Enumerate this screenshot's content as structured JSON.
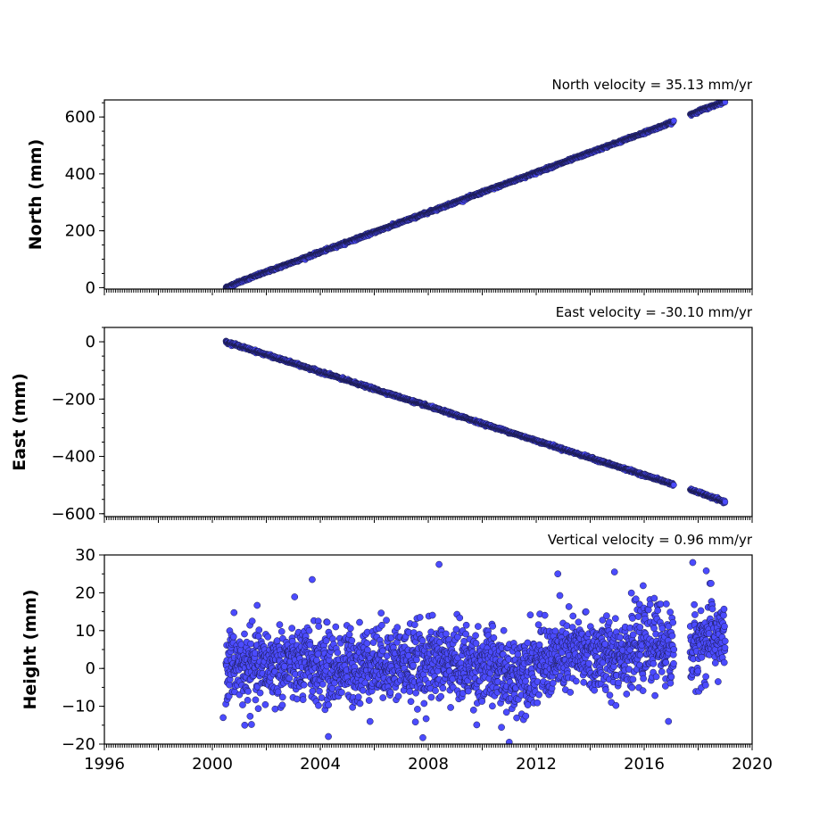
{
  "chart_data": [
    {
      "type": "scatter",
      "panel": "north",
      "ylabel": "North (mm)",
      "annotation": "North velocity = 35.13 mm/yr",
      "xlim": [
        1996,
        2020
      ],
      "ylim": [
        -5,
        660
      ],
      "yticks": [
        0,
        200,
        400,
        600
      ],
      "ytick_labels": [
        "0",
        "200",
        "400",
        "600"
      ],
      "xtick_labels_shown": false,
      "grid": false,
      "marker_color": "#4b4bff",
      "edge_color": "#1a1a4a",
      "series": [
        {
          "x": [
            2000.5,
            2001.0,
            2001.5,
            2002.0,
            2003.0,
            2004.0,
            2005.0,
            2006.0,
            2007.0,
            2008.0,
            2009.0,
            2010.0,
            2011.0,
            2012.0,
            2013.0,
            2014.0,
            2015.0,
            2016.0,
            2017.0,
            2018.0,
            2019.0
          ],
          "y": [
            0,
            20,
            38,
            55,
            90,
            125,
            160,
            195,
            230,
            265,
            300,
            335,
            370,
            405,
            440,
            475,
            510,
            545,
            580,
            620,
            655
          ]
        }
      ]
    },
    {
      "type": "scatter",
      "panel": "east",
      "ylabel": "East (mm)",
      "annotation": "East velocity = -30.10 mm/yr",
      "xlim": [
        1996,
        2020
      ],
      "ylim": [
        -610,
        50
      ],
      "yticks": [
        0,
        -200,
        -400,
        -600
      ],
      "ytick_labels": [
        "0",
        "−200",
        "−400",
        "−600"
      ],
      "xtick_labels_shown": false,
      "grid": false,
      "marker_color": "#4b4bff",
      "edge_color": "#1a1a4a",
      "series": [
        {
          "x": [
            2000.5,
            2001.0,
            2001.5,
            2002.0,
            2003.0,
            2004.0,
            2005.0,
            2006.0,
            2007.0,
            2008.0,
            2009.0,
            2010.0,
            2011.0,
            2012.0,
            2013.0,
            2014.0,
            2015.0,
            2016.0,
            2017.0,
            2018.0,
            2019.0
          ],
          "y": [
            0,
            -15,
            -30,
            -45,
            -75,
            -105,
            -135,
            -165,
            -195,
            -225,
            -255,
            -285,
            -315,
            -345,
            -375,
            -405,
            -435,
            -465,
            -495,
            -525,
            -560
          ]
        }
      ]
    },
    {
      "type": "scatter",
      "panel": "height",
      "ylabel": "Height (mm)",
      "annotation": "Vertical velocity = 0.96 mm/yr",
      "xlim": [
        1996,
        2020
      ],
      "ylim": [
        -20,
        30
      ],
      "yticks": [
        -20,
        -10,
        0,
        10,
        20,
        30
      ],
      "ytick_labels": [
        "−20",
        "−10",
        "0",
        "10",
        "20",
        "30"
      ],
      "xticks": [
        1996,
        2000,
        2004,
        2008,
        2012,
        2016,
        2020
      ],
      "xtick_labels": [
        "1996",
        "2000",
        "2004",
        "2008",
        "2012",
        "2016",
        "2020"
      ],
      "grid": false,
      "marker_color": "#4b4bff",
      "edge_color": "#1a1a4a",
      "series": [
        {
          "x": [
            2000.5,
            2001.5,
            2002.5,
            2003.5,
            2004.5,
            2005.5,
            2006.5,
            2007.5,
            2008.5,
            2009.5,
            2010.5,
            2011.0,
            2011.5,
            2012.5,
            2013.5,
            2014.5,
            2015.5,
            2016.5,
            2017.5,
            2018.5,
            2019.0
          ],
          "y": [
            1,
            0,
            1,
            1,
            0,
            1,
            2,
            1,
            2,
            1,
            0,
            -3,
            0,
            2,
            4,
            3,
            5,
            7,
            3,
            9,
            8
          ]
        }
      ],
      "outliers": [
        {
          "x": 2003.7,
          "y": 23.5
        },
        {
          "x": 2008.4,
          "y": 27.5
        },
        {
          "x": 2012.8,
          "y": 25.0
        },
        {
          "x": 2014.9,
          "y": 25.5
        },
        {
          "x": 2017.8,
          "y": 28.0
        },
        {
          "x": 2018.3,
          "y": 25.8
        },
        {
          "x": 2011.0,
          "y": -19.5
        },
        {
          "x": 2004.3,
          "y": -18.0
        },
        {
          "x": 2007.8,
          "y": -18.3
        },
        {
          "x": 2001.2,
          "y": -15.0
        },
        {
          "x": 2016.9,
          "y": -14.0
        },
        {
          "x": 2000.4,
          "y": -13.0
        }
      ]
    }
  ]
}
